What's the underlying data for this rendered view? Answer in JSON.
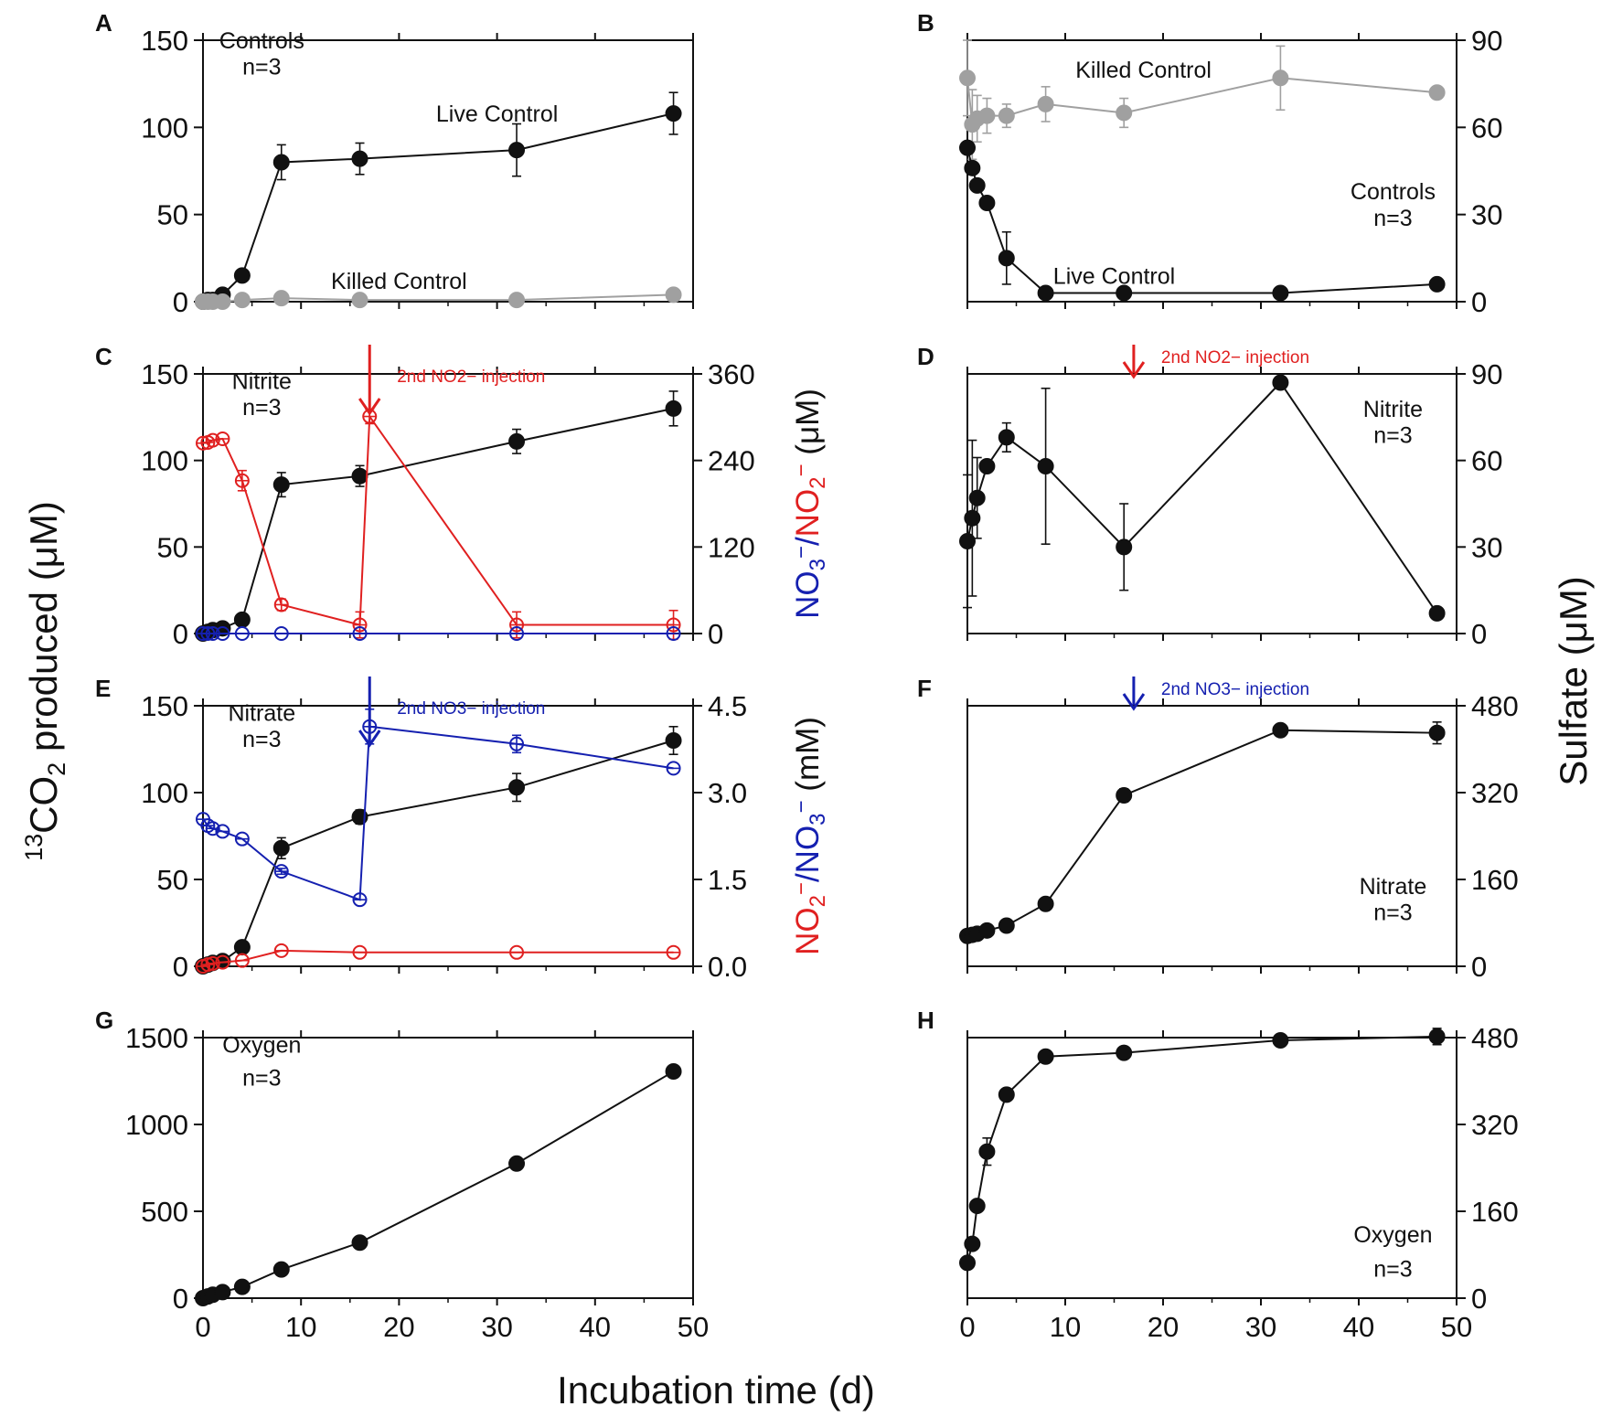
{
  "figure": {
    "x_axis_title": "Incubation time (d)",
    "left_axis_title": {
      "sup": "13",
      "main": "CO",
      "sub": "2",
      "rest": " produced (μM)"
    },
    "right_axis_title": "Sulfate (μM)"
  },
  "colors": {
    "black": "#111111",
    "gray": "#a0a0a0",
    "red": "#e02020",
    "blue": "#1520b0"
  },
  "chart_data": [
    {
      "panel": "A",
      "type": "line",
      "side": "left",
      "row": 0,
      "title": "",
      "xlabel": "",
      "ylabel": "13CO2 produced (μM)",
      "xlim": [
        0,
        50
      ],
      "ylim": [
        0,
        150
      ],
      "yticks": [
        0,
        50,
        100,
        150
      ],
      "xticks": [
        0,
        10,
        20,
        30,
        40,
        50
      ],
      "show_xtick_labels": false,
      "annotations": [
        {
          "text": "Controls",
          "x": 6,
          "y": 150,
          "anchor": "middle",
          "color": "black"
        },
        {
          "text": "n=3",
          "x": 6,
          "y": 135,
          "anchor": "middle",
          "color": "black"
        },
        {
          "text": "Live Control",
          "x": 30,
          "y": 108,
          "anchor": "middle",
          "color": "black"
        },
        {
          "text": "Killed Control",
          "x": 20,
          "y": 12,
          "anchor": "middle",
          "color": "black"
        }
      ],
      "series": [
        {
          "name": "Live Control",
          "color": "black",
          "marker": "filled",
          "axis": "left",
          "x": [
            0,
            0.5,
            1,
            2,
            4,
            8,
            16,
            32,
            48
          ],
          "y": [
            0,
            1,
            1,
            4,
            15,
            80,
            82,
            87,
            108
          ],
          "err": [
            0,
            0,
            0,
            0,
            0,
            10,
            9,
            15,
            12
          ]
        },
        {
          "name": "Killed Control",
          "color": "gray",
          "marker": "filled",
          "axis": "left",
          "x": [
            0,
            0.5,
            1,
            2,
            4,
            8,
            16,
            32,
            48
          ],
          "y": [
            0,
            0,
            0,
            0,
            1,
            2,
            1,
            1,
            4
          ],
          "err": [
            0,
            0,
            0,
            0,
            0,
            0,
            0,
            0,
            0
          ]
        }
      ]
    },
    {
      "panel": "B",
      "type": "line",
      "side": "right",
      "row": 0,
      "title": "",
      "xlabel": "",
      "ylabel": "Sulfate (μM)",
      "xlim": [
        0,
        50
      ],
      "ylim": [
        0,
        90
      ],
      "yticks": [
        0,
        30,
        60,
        90
      ],
      "xticks": [
        0,
        10,
        20,
        30,
        40,
        50
      ],
      "show_xtick_labels": false,
      "annotations": [
        {
          "text": "Killed Control",
          "x": 18,
          "y": 80,
          "anchor": "middle",
          "color": "black"
        },
        {
          "text": "Controls",
          "x": 43.5,
          "y": 38,
          "anchor": "middle",
          "color": "black"
        },
        {
          "text": "n=3",
          "x": 43.5,
          "y": 29,
          "anchor": "middle",
          "color": "black"
        },
        {
          "text": "Live Control",
          "x": 15,
          "y": 9,
          "anchor": "middle",
          "color": "black"
        }
      ],
      "series": [
        {
          "name": "Killed Control",
          "color": "gray",
          "marker": "filled",
          "axis": "left",
          "x": [
            0,
            0.5,
            1,
            2,
            4,
            8,
            16,
            32,
            48
          ],
          "y": [
            77,
            61,
            63,
            64,
            64,
            68,
            65,
            77,
            72
          ],
          "err": [
            13,
            12,
            8,
            6,
            4,
            6,
            5,
            11,
            0
          ]
        },
        {
          "name": "Live Control",
          "color": "black",
          "marker": "filled",
          "axis": "left",
          "x": [
            0,
            0.5,
            1,
            2,
            4,
            8,
            16,
            32,
            48
          ],
          "y": [
            53,
            46,
            40,
            34,
            15,
            3,
            3,
            3,
            6
          ],
          "err": [
            0,
            0,
            0,
            0,
            9,
            0,
            0,
            0,
            0
          ]
        }
      ]
    },
    {
      "panel": "C",
      "type": "line",
      "side": "left",
      "row": 1,
      "title": "",
      "xlabel": "",
      "ylabel": "13CO2 produced (μM)",
      "xlim": [
        0,
        50
      ],
      "ylim": [
        0,
        150
      ],
      "yticks": [
        0,
        50,
        100,
        150
      ],
      "xticks": [
        0,
        10,
        20,
        30,
        40,
        50
      ],
      "show_xtick_labels": false,
      "right_axis": {
        "ylim": [
          0,
          360
        ],
        "yticks": [
          0,
          120,
          240,
          360
        ],
        "title": [
          {
            "t": "NO",
            "color": "blue"
          },
          {
            "t": "3",
            "sub": true,
            "color": "blue"
          },
          {
            "t": "−",
            "sup": true,
            "color": "blue"
          },
          {
            "t": "/",
            "color": "blue"
          },
          {
            "t": "NO",
            "color": "red"
          },
          {
            "t": "2",
            "sub": true,
            "color": "red"
          },
          {
            "t": "−",
            "sup": true,
            "color": "red"
          },
          {
            "t": " (μM)",
            "color": "black"
          }
        ]
      },
      "arrow": {
        "x": 17,
        "color": "red",
        "label": "2nd NO2− injection"
      },
      "annotations": [
        {
          "text": "Nitrite",
          "x": 6,
          "y": 146,
          "anchor": "middle",
          "color": "black"
        },
        {
          "text": "n=3",
          "x": 6,
          "y": 131,
          "anchor": "middle",
          "color": "black"
        }
      ],
      "series": [
        {
          "name": "13CO2",
          "color": "black",
          "marker": "filled",
          "axis": "left",
          "x": [
            0,
            0.5,
            1,
            2,
            4,
            8,
            16,
            32,
            48
          ],
          "y": [
            0,
            1,
            2,
            3,
            8,
            86,
            91,
            111,
            130
          ],
          "err": [
            0,
            0,
            0,
            0,
            0,
            7,
            6,
            7,
            10
          ]
        },
        {
          "name": "NO2−",
          "color": "red",
          "marker": "open",
          "axis": "right",
          "x": [
            0,
            0.5,
            1,
            2,
            4,
            8,
            16,
            17,
            32,
            48
          ],
          "y": [
            264,
            265,
            268,
            270,
            212,
            40,
            12,
            301,
            12,
            12
          ],
          "err": [
            0,
            0,
            0,
            0,
            14,
            8,
            18,
            10,
            18,
            20
          ]
        },
        {
          "name": "NO3−",
          "color": "blue",
          "marker": "open",
          "axis": "right",
          "x": [
            0,
            0.5,
            1,
            2,
            4,
            8,
            16,
            32,
            48
          ],
          "y": [
            0,
            0,
            0,
            0,
            0,
            0,
            0,
            0,
            0
          ],
          "err": [
            0,
            0,
            0,
            0,
            0,
            0,
            0,
            0,
            0
          ]
        }
      ]
    },
    {
      "panel": "D",
      "type": "line",
      "side": "right",
      "row": 1,
      "title": "",
      "xlabel": "",
      "ylabel": "Sulfate (μM)",
      "xlim": [
        0,
        50
      ],
      "ylim": [
        0,
        90
      ],
      "yticks": [
        0,
        30,
        60,
        90
      ],
      "xticks": [
        0,
        10,
        20,
        30,
        40,
        50
      ],
      "show_xtick_labels": false,
      "arrow": {
        "x": 17,
        "color": "red",
        "label": "2nd NO2− injection"
      },
      "annotations": [
        {
          "text": "Nitrite",
          "x": 43.5,
          "y": 78,
          "anchor": "middle",
          "color": "black"
        },
        {
          "text": "n=3",
          "x": 43.5,
          "y": 69,
          "anchor": "middle",
          "color": "black"
        }
      ],
      "series": [
        {
          "name": "Sulfate",
          "color": "black",
          "marker": "filled",
          "axis": "left",
          "x": [
            0,
            0.5,
            1,
            2,
            4,
            8,
            16,
            32,
            48
          ],
          "y": [
            32,
            40,
            47,
            58,
            68,
            58,
            30,
            87,
            7
          ],
          "err": [
            23,
            27,
            14,
            0,
            5,
            27,
            15,
            0,
            0
          ]
        }
      ]
    },
    {
      "panel": "E",
      "type": "line",
      "side": "left",
      "row": 2,
      "title": "",
      "xlabel": "",
      "ylabel": "13CO2 produced (μM)",
      "xlim": [
        0,
        50
      ],
      "ylim": [
        0,
        150
      ],
      "yticks": [
        0,
        50,
        100,
        150
      ],
      "xticks": [
        0,
        10,
        20,
        30,
        40,
        50
      ],
      "show_xtick_labels": false,
      "right_axis": {
        "ylim": [
          0,
          4.5
        ],
        "yticks": [
          0,
          1.5,
          3.0,
          4.5
        ],
        "tick_labels": [
          "0.0",
          "1.5",
          "3.0",
          "4.5"
        ],
        "title": [
          {
            "t": "NO",
            "color": "red"
          },
          {
            "t": "2",
            "sub": true,
            "color": "red"
          },
          {
            "t": "−",
            "sup": true,
            "color": "red"
          },
          {
            "t": "/",
            "color": "blue"
          },
          {
            "t": "NO",
            "color": "blue"
          },
          {
            "t": "3",
            "sub": true,
            "color": "blue"
          },
          {
            "t": "−",
            "sup": true,
            "color": "blue"
          },
          {
            "t": " (mM)",
            "color": "black"
          }
        ]
      },
      "arrow": {
        "x": 17,
        "color": "blue",
        "label": "2nd NO3− injection"
      },
      "annotations": [
        {
          "text": "Nitrate",
          "x": 6,
          "y": 146,
          "anchor": "middle",
          "color": "black"
        },
        {
          "text": "n=3",
          "x": 6,
          "y": 131,
          "anchor": "middle",
          "color": "black"
        }
      ],
      "series": [
        {
          "name": "13CO2",
          "color": "black",
          "marker": "filled",
          "axis": "left",
          "x": [
            0,
            0.5,
            1,
            2,
            4,
            8,
            16,
            32,
            48
          ],
          "y": [
            0,
            1,
            2,
            3,
            11,
            68,
            86,
            103,
            130
          ],
          "err": [
            0,
            0,
            0,
            0,
            0,
            6,
            4,
            8,
            8
          ]
        },
        {
          "name": "NO3−",
          "color": "blue",
          "marker": "open",
          "axis": "right",
          "x": [
            0,
            0.5,
            1,
            2,
            4,
            8,
            16,
            17,
            32,
            48
          ],
          "y": [
            2.54,
            2.43,
            2.38,
            2.33,
            2.2,
            1.64,
            1.15,
            4.14,
            3.84,
            3.42
          ],
          "err": [
            0,
            0,
            0,
            0,
            0,
            0.05,
            0,
            0.3,
            0.15,
            0
          ]
        },
        {
          "name": "NO2−",
          "color": "red",
          "marker": "open",
          "axis": "right",
          "x": [
            0,
            0.5,
            1,
            2,
            4,
            8,
            16,
            32,
            48
          ],
          "y": [
            0,
            0.03,
            0.05,
            0.07,
            0.1,
            0.27,
            0.24,
            0.24,
            0.24
          ],
          "err": [
            0,
            0,
            0,
            0,
            0,
            0,
            0,
            0,
            0
          ]
        }
      ]
    },
    {
      "panel": "F",
      "type": "line",
      "side": "right",
      "row": 2,
      "title": "",
      "xlabel": "",
      "ylabel": "Sulfate (μM)",
      "xlim": [
        0,
        50
      ],
      "ylim": [
        0,
        480
      ],
      "yticks": [
        0,
        160,
        320,
        480
      ],
      "xticks": [
        0,
        10,
        20,
        30,
        40,
        50
      ],
      "show_xtick_labels": false,
      "arrow": {
        "x": 17,
        "color": "blue",
        "label": "2nd NO3− injection"
      },
      "annotations": [
        {
          "text": "Nitrate",
          "x": 43.5,
          "y": 148,
          "anchor": "middle",
          "color": "black"
        },
        {
          "text": "n=3",
          "x": 43.5,
          "y": 100,
          "anchor": "middle",
          "color": "black"
        }
      ],
      "series": [
        {
          "name": "Sulfate",
          "color": "black",
          "marker": "filled",
          "axis": "left",
          "x": [
            0,
            0.5,
            1,
            2,
            4,
            8,
            16,
            32,
            48
          ],
          "y": [
            56,
            58,
            60,
            66,
            75,
            115,
            315,
            435,
            430
          ],
          "err": [
            0,
            0,
            0,
            0,
            0,
            0,
            12,
            0,
            20
          ]
        }
      ]
    },
    {
      "panel": "G",
      "type": "line",
      "side": "left",
      "row": 3,
      "title": "",
      "xlabel": "Incubation time (d)",
      "ylabel": "13CO2 produced (μM)",
      "xlim": [
        0,
        50
      ],
      "ylim": [
        0,
        1500
      ],
      "yticks": [
        0,
        500,
        1000,
        1500
      ],
      "xticks": [
        0,
        10,
        20,
        30,
        40,
        50
      ],
      "show_xtick_labels": true,
      "annotations": [
        {
          "text": "Oxygen",
          "x": 6,
          "y": 1460,
          "anchor": "middle",
          "color": "black"
        },
        {
          "text": "n=3",
          "x": 6,
          "y": 1270,
          "anchor": "middle",
          "color": "black"
        }
      ],
      "series": [
        {
          "name": "13CO2",
          "color": "black",
          "marker": "filled",
          "axis": "left",
          "x": [
            0,
            0.5,
            1,
            2,
            4,
            8,
            16,
            32,
            48
          ],
          "y": [
            0,
            10,
            20,
            35,
            65,
            165,
            320,
            775,
            1305
          ],
          "err": [
            0,
            0,
            0,
            0,
            0,
            0,
            0,
            0,
            0
          ]
        }
      ]
    },
    {
      "panel": "H",
      "type": "line",
      "side": "right",
      "row": 3,
      "title": "",
      "xlabel": "Incubation time (d)",
      "ylabel": "Sulfate (μM)",
      "xlim": [
        0,
        50
      ],
      "ylim": [
        0,
        480
      ],
      "yticks": [
        0,
        160,
        320,
        480
      ],
      "xticks": [
        0,
        10,
        20,
        30,
        40,
        50
      ],
      "show_xtick_labels": true,
      "annotations": [
        {
          "text": "Oxygen",
          "x": 43.5,
          "y": 118,
          "anchor": "middle",
          "color": "black"
        },
        {
          "text": "n=3",
          "x": 43.5,
          "y": 55,
          "anchor": "middle",
          "color": "black"
        }
      ],
      "series": [
        {
          "name": "Sulfate",
          "color": "black",
          "marker": "filled",
          "axis": "left",
          "x": [
            0,
            0.5,
            1,
            2,
            4,
            8,
            16,
            32,
            48
          ],
          "y": [
            65,
            100,
            170,
            270,
            375,
            445,
            452,
            475,
            482
          ],
          "err": [
            0,
            0,
            0,
            25,
            0,
            0,
            0,
            0,
            15
          ]
        }
      ]
    }
  ]
}
